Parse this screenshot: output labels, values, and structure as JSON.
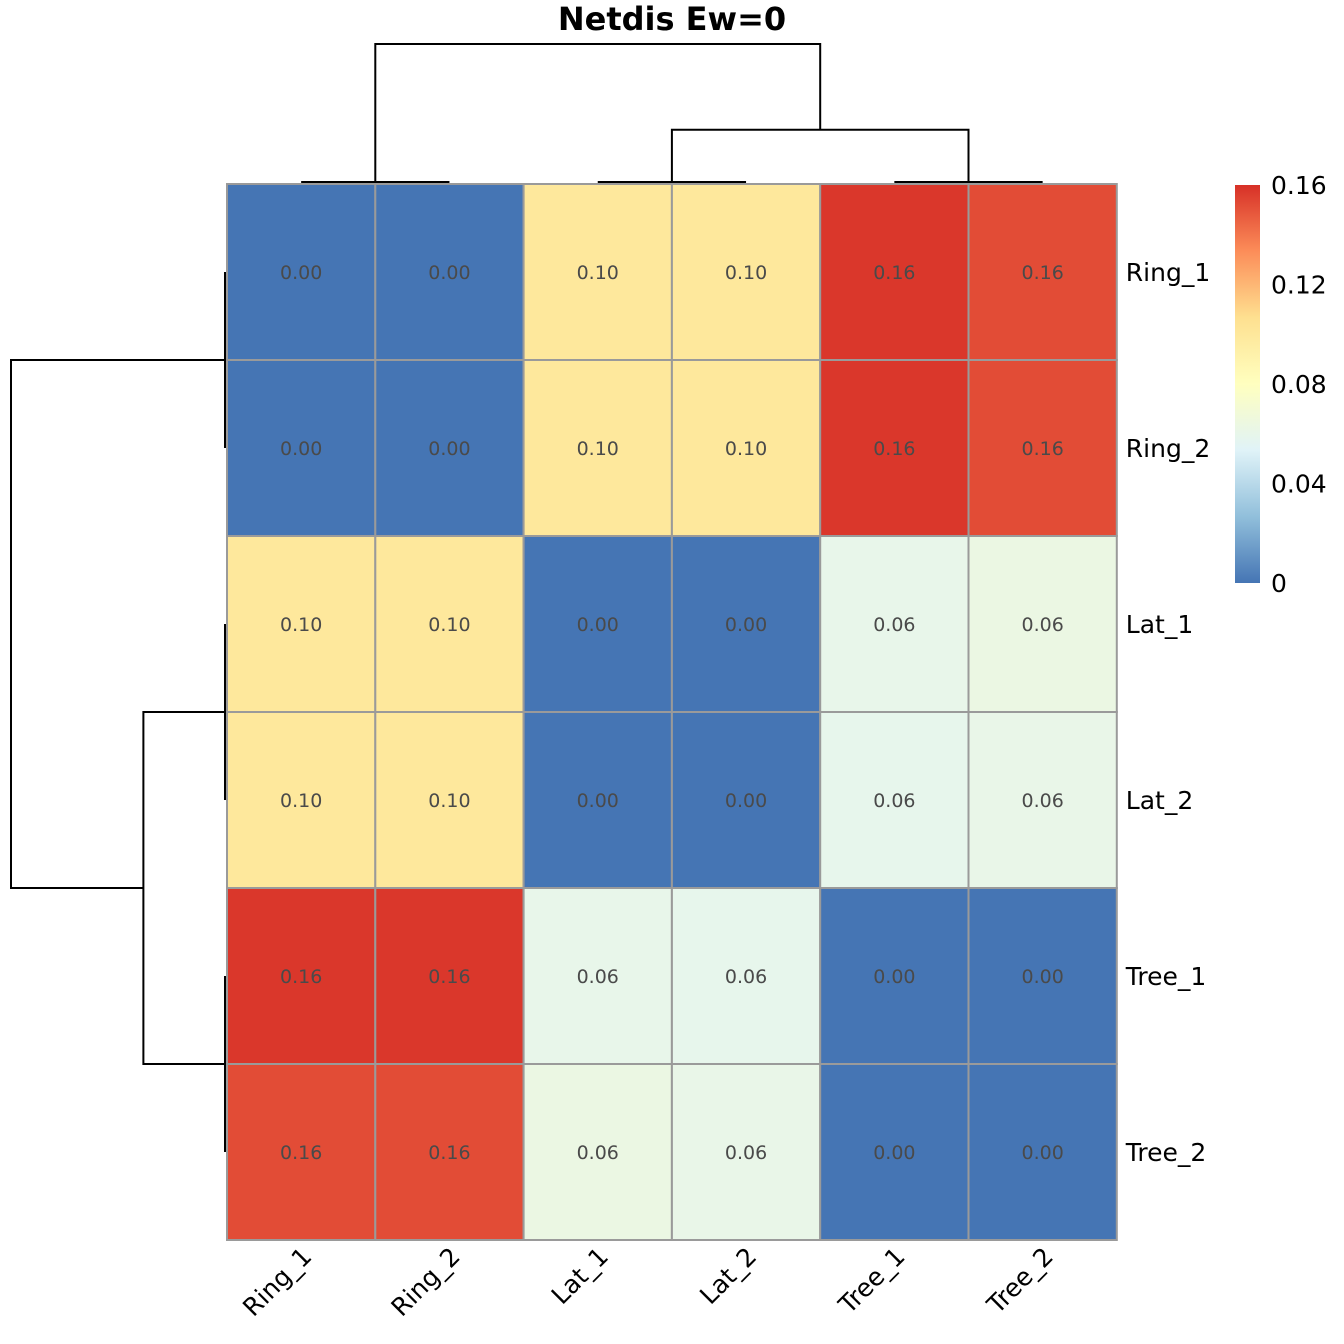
{
  "chart_data": {
    "type": "heatmap",
    "title": "Netdis Ew=0",
    "rows": [
      "Ring_1",
      "Ring_2",
      "Lat_1",
      "Lat_2",
      "Tree_1",
      "Tree_2"
    ],
    "columns": [
      "Ring_1",
      "Ring_2",
      "Lat_1",
      "Lat_2",
      "Tree_1",
      "Tree_2"
    ],
    "values": [
      [
        0.0,
        0.0,
        0.1,
        0.1,
        0.158,
        0.152
      ],
      [
        0.0,
        0.0,
        0.1,
        0.1,
        0.158,
        0.152
      ],
      [
        0.1,
        0.1,
        0.0,
        0.0,
        0.06,
        0.063
      ],
      [
        0.1,
        0.1,
        0.0,
        0.0,
        0.059,
        0.061
      ],
      [
        0.158,
        0.158,
        0.06,
        0.059,
        0.0,
        0.0
      ],
      [
        0.152,
        0.152,
        0.063,
        0.061,
        0.0,
        0.0
      ]
    ],
    "cell_labels": [
      [
        "0.00",
        "0.00",
        "0.10",
        "0.10",
        "0.16",
        "0.16"
      ],
      [
        "0.00",
        "0.00",
        "0.10",
        "0.10",
        "0.16",
        "0.16"
      ],
      [
        "0.10",
        "0.10",
        "0.00",
        "0.00",
        "0.06",
        "0.06"
      ],
      [
        "0.10",
        "0.10",
        "0.00",
        "0.00",
        "0.06",
        "0.06"
      ],
      [
        "0.16",
        "0.16",
        "0.06",
        "0.06",
        "0.00",
        "0.00"
      ],
      [
        "0.16",
        "0.16",
        "0.06",
        "0.06",
        "0.00",
        "0.00"
      ]
    ],
    "color_scale": {
      "min": 0,
      "max": 0.16,
      "stops": [
        "#4575b4",
        "#91bfdb",
        "#e0f3f8",
        "#ffffbf",
        "#fee090",
        "#fc8d59",
        "#d73027"
      ]
    },
    "legend": {
      "placement": "right",
      "ticks": [
        {
          "value": 0,
          "label": "0"
        },
        {
          "value": 0.04,
          "label": "0.04"
        },
        {
          "value": 0.08,
          "label": "0.08"
        },
        {
          "value": 0.12,
          "label": "0.12"
        },
        {
          "value": 0.16,
          "label": "0.16"
        }
      ]
    },
    "dendrogram": {
      "clusters": [
        [
          "Ring_1",
          "Ring_2"
        ],
        [
          [
            "Lat_1",
            "Lat_2"
          ],
          [
            "Tree_1",
            "Tree_2"
          ]
        ]
      ],
      "merge_heights": {
        "ring_pair": 0.0,
        "lat_pair": 0.0,
        "tree_pair": 0.0,
        "lat_tree": 0.06,
        "root": 0.155
      }
    }
  }
}
